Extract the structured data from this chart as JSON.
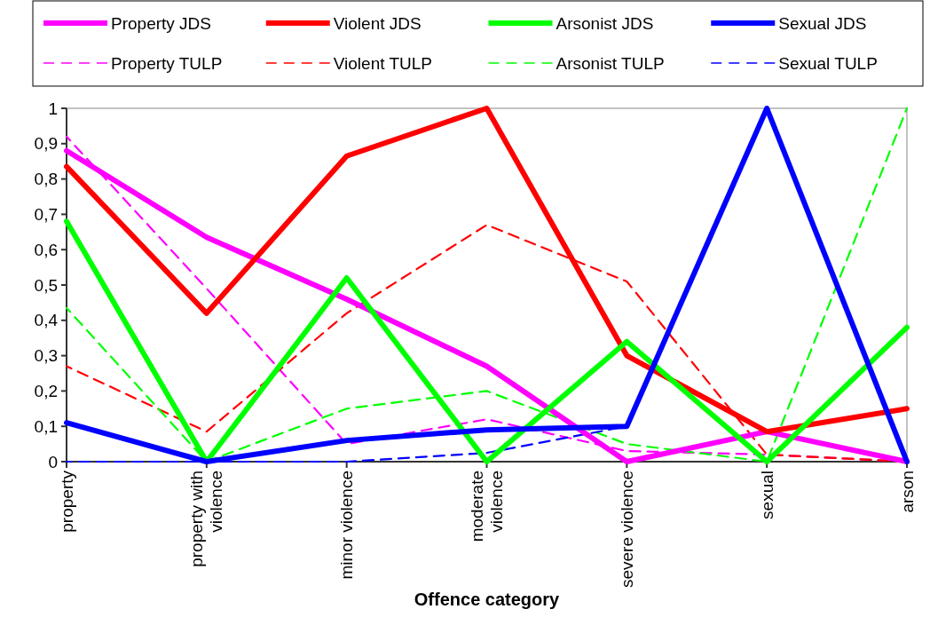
{
  "chart_data": {
    "type": "line",
    "xlabel": "Offence category",
    "categories": [
      "property",
      "property with violence",
      "minor violence",
      "moderate violence",
      "severe violence",
      "sexual",
      "arson"
    ],
    "ylim": [
      0,
      1
    ],
    "yticks": [
      {
        "value": 0,
        "label": "0"
      },
      {
        "value": 0.1,
        "label": "0,1"
      },
      {
        "value": 0.2,
        "label": "0,2"
      },
      {
        "value": 0.3,
        "label": "0,3"
      },
      {
        "value": 0.4,
        "label": "0,4"
      },
      {
        "value": 0.5,
        "label": "0,5"
      },
      {
        "value": 0.6,
        "label": "0,6"
      },
      {
        "value": 0.7,
        "label": "0,7"
      },
      {
        "value": 0.8,
        "label": "0,8"
      },
      {
        "value": 0.9,
        "label": "0,9"
      },
      {
        "value": 1,
        "label": "1"
      }
    ],
    "grid": false,
    "legend": "top",
    "marker": "none",
    "series": [
      {
        "name": "Property TULP",
        "color": "#ff00ff",
        "line_style": "dashed",
        "values": [
          0.92,
          0.49,
          0.05,
          0.12,
          0.03,
          0.02,
          0
        ]
      },
      {
        "name": "Violent TULP",
        "color": "#ff0000",
        "line_style": "dashed",
        "values": [
          0.27,
          0.085,
          0.42,
          0.67,
          0.51,
          0.02,
          0
        ]
      },
      {
        "name": "Arsonist TULP",
        "color": "#00ff00",
        "line_style": "dashed",
        "values": [
          0.435,
          0,
          0.15,
          0.2,
          0.05,
          0,
          1
        ]
      },
      {
        "name": "Sexual TULP",
        "color": "#0000ff",
        "line_style": "dashed",
        "values": [
          0,
          0,
          0,
          0.025,
          0.1,
          null,
          null
        ]
      },
      {
        "name": "Property JDS",
        "color": "#ff00ff",
        "line_style": "solid",
        "values": [
          0.88,
          0.635,
          0.46,
          0.27,
          0,
          0.085,
          0
        ]
      },
      {
        "name": "Violent JDS",
        "color": "#ff0000",
        "line_style": "solid",
        "values": [
          0.835,
          0.42,
          0.865,
          1,
          0.3,
          0.085,
          0.15
        ]
      },
      {
        "name": "Arsonist JDS",
        "color": "#00ff00",
        "line_style": "solid",
        "values": [
          0.68,
          0,
          0.52,
          0,
          0.34,
          0,
          0.38
        ]
      },
      {
        "name": "Sexual JDS",
        "color": "#0000ff",
        "line_style": "solid",
        "values": [
          0.11,
          0,
          0.06,
          0.09,
          0.1,
          1,
          0
        ]
      }
    ]
  }
}
